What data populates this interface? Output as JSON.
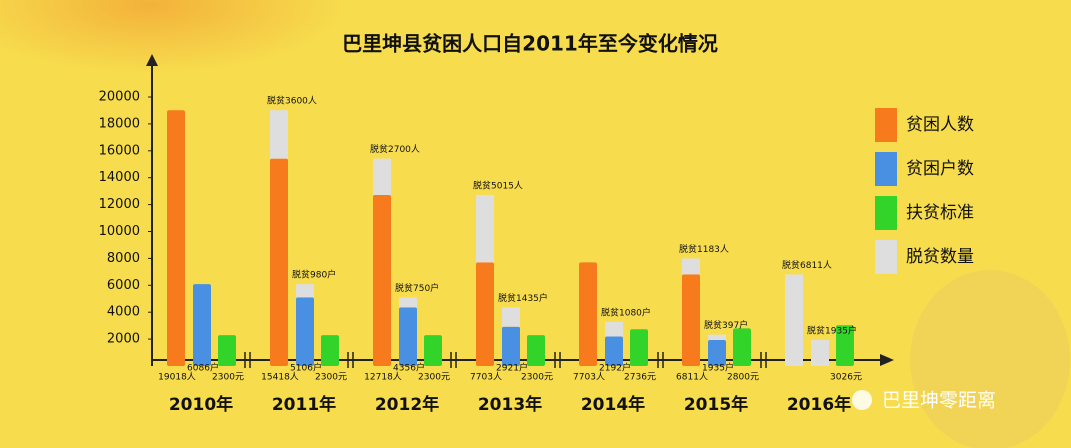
{
  "chart_data": {
    "type": "bar",
    "title": "巴里坤县贫困人口自2011年至今变化情况",
    "categories": [
      "2010年",
      "2011年",
      "2012年",
      "2013年",
      "2014年",
      "2015年",
      "2016年"
    ],
    "ylim": [
      0,
      20000
    ],
    "yticks": [
      2000,
      4000,
      6000,
      8000,
      10000,
      12000,
      14000,
      16000,
      18000,
      20000
    ],
    "series": [
      {
        "name": "贫困人数",
        "color": "#f77a1c",
        "values": [
          19018,
          15418,
          12718,
          7703,
          7703,
          6811,
          null
        ],
        "value_labels": [
          "19018人",
          "15418人",
          "12718人",
          "7703人",
          "7703人",
          "6811人",
          null
        ]
      },
      {
        "name": "贫困户数",
        "color": "#4a90e2",
        "values": [
          6086,
          5106,
          4356,
          2921,
          2192,
          1935,
          null
        ],
        "value_labels": [
          "6086户",
          "5106户",
          "4356户",
          "2921户",
          "2192户",
          "1935户",
          null
        ]
      },
      {
        "name": "扶贫标准",
        "color": "#33d42a",
        "values": [
          2300,
          2300,
          2300,
          2300,
          2736,
          2800,
          3026
        ],
        "value_labels": [
          "2300元",
          "2300元",
          "2300元",
          "2300元",
          "2736元",
          "2800元",
          "3026元"
        ]
      },
      {
        "name": "脱贫数量",
        "color": "#dedede",
        "values": [
          null,
          3600,
          2700,
          5015,
          null,
          1183,
          6811
        ],
        "value_labels": [
          null,
          "脱贫3600人",
          "脱贫2700人",
          "脱贫5015人",
          null,
          "脱贫1183人",
          "脱贫6811人"
        ]
      },
      {
        "color": "#dedede",
        "values": [
          null,
          980,
          750,
          1435,
          1080,
          397,
          1935
        ],
        "value_labels": [
          null,
          "脱贫980户",
          "脱贫750户",
          "脱贫1435户",
          "脱贫1080户",
          "脱贫397户",
          "脱贫1935户"
        ]
      }
    ],
    "watermark": "巴里坤零距离"
  }
}
